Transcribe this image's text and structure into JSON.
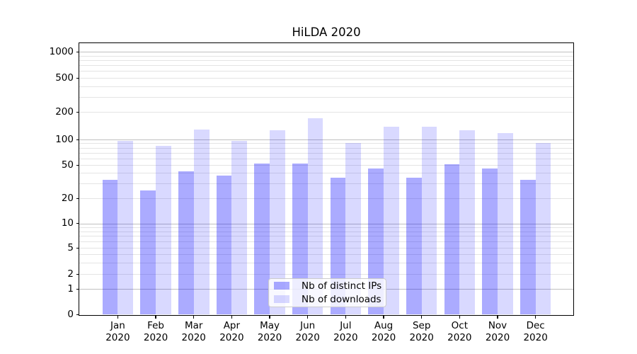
{
  "title": "HiLDA 2020",
  "colors": {
    "bar_distinct_ips": "rgba(0,0,255,0.33)",
    "bar_downloads": "rgba(0,0,255,0.15)",
    "bar_distinct_ips_apparent": "#aaaaff",
    "bar_downloads_apparent": "#d9d9ff",
    "grid_major": "#c0c0c0",
    "grid_minor": "#e4e4e4",
    "spine": "#000000",
    "legend_border": "#cccccc"
  },
  "chart_data": {
    "type": "bar",
    "title": "HiLDA 2020",
    "x_tick_months": [
      "Jan",
      "Feb",
      "Mar",
      "Apr",
      "May",
      "Jun",
      "Jul",
      "Aug",
      "Sep",
      "Oct",
      "Nov",
      "Dec"
    ],
    "x_tick_year": "2020",
    "categories": [
      "Jan 2020",
      "Feb 2020",
      "Mar 2020",
      "Apr 2020",
      "May 2020",
      "Jun 2020",
      "Jul 2020",
      "Aug 2020",
      "Sep 2020",
      "Oct 2020",
      "Nov 2020",
      "Dec 2020"
    ],
    "series": [
      {
        "name": "Nb of distinct IPs",
        "color": "rgba(0,0,255,0.33)",
        "values": [
          33,
          25,
          42,
          37,
          52,
          52,
          35,
          45,
          35,
          51,
          45,
          33
        ]
      },
      {
        "name": "Nb of downloads",
        "color": "rgba(0,0,255,0.15)",
        "values": [
          96,
          84,
          128,
          96,
          127,
          170,
          90,
          137,
          137,
          125,
          118,
          90
        ]
      }
    ],
    "xlabel": "",
    "ylabel": "",
    "yscale": "symlog",
    "yticks": [
      0,
      1,
      2,
      5,
      10,
      20,
      50,
      100,
      200,
      500,
      1000
    ],
    "ylim": [
      0,
      1270
    ],
    "grid": true,
    "legend_position": "lower center"
  }
}
